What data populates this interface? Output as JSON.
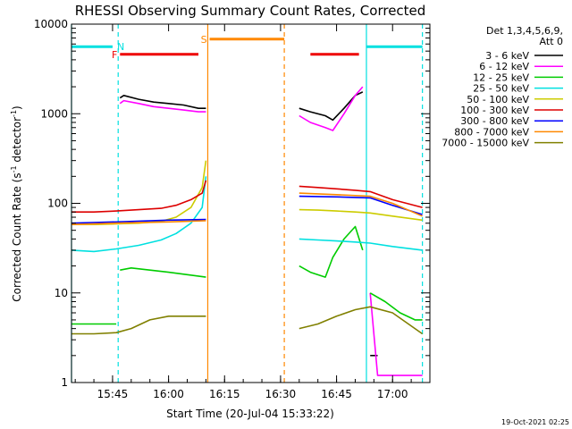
{
  "chart_data": {
    "type": "line",
    "title": "RHESSI Observing Summary Count Rates, Corrected",
    "xlabel": "Start Time (20-Jul-04 15:33:22)",
    "ylabel_main": "Corrected Count Rate (s",
    "ylabel_sup1": "-1",
    "ylabel_mid": " detector",
    "ylabel_sup2": "-1",
    "ylabel_end": ")",
    "yscale": "log",
    "xlim": [
      "15:34",
      "17:10"
    ],
    "ylim": [
      1,
      10000
    ],
    "x_ticks": [
      "15:45",
      "16:00",
      "16:15",
      "16:30",
      "16:45",
      "17:00"
    ],
    "y_ticks": [
      "1",
      "10",
      "100",
      "1000",
      "10000"
    ],
    "legend_header_1": "Det 1,3,4,5,6,9,",
    "legend_header_2": "Att 0",
    "legend_position": "right, outside plot",
    "timestamp": "19-Oct-2021 02:25",
    "series": [
      {
        "name": "3 - 6 keV",
        "color": "#000000",
        "segments": [
          {
            "x": [
              "15:47",
              "15:48",
              "15:52",
              "15:56",
              "16:00",
              "16:04",
              "16:08",
              "16:10"
            ],
            "y": [
              1500,
              1600,
              1450,
              1350,
              1300,
              1250,
              1150,
              1150
            ]
          },
          {
            "x": [
              "16:35",
              "16:38",
              "16:42",
              "16:44",
              "16:47",
              "16:50",
              "16:52"
            ],
            "y": [
              1150,
              1050,
              950,
              850,
              1150,
              1600,
              1750
            ]
          },
          {
            "x": [
              "16:54",
              "16:56"
            ],
            "y": [
              2,
              2
            ]
          }
        ]
      },
      {
        "name": "6 - 12 keV",
        "color": "#ff00ff",
        "segments": [
          {
            "x": [
              "15:47",
              "15:48",
              "15:52",
              "15:56",
              "16:00",
              "16:04",
              "16:08",
              "16:10"
            ],
            "y": [
              1300,
              1400,
              1300,
              1200,
              1150,
              1100,
              1050,
              1050
            ]
          },
          {
            "x": [
              "16:35",
              "16:38",
              "16:42",
              "16:44",
              "16:47",
              "16:50",
              "16:52"
            ],
            "y": [
              950,
              800,
              700,
              650,
              1000,
              1600,
              2000
            ]
          },
          {
            "x": [
              "16:54",
              "16:56",
              "17:08"
            ],
            "y": [
              10,
              1.2,
              1.2
            ]
          }
        ]
      },
      {
        "name": "12 - 25 keV",
        "color": "#00cc00",
        "segments": [
          {
            "x": [
              "15:34",
              "15:40",
              "15:44",
              "15:46"
            ],
            "y": [
              4.5,
              4.5,
              4.5,
              4.5
            ]
          },
          {
            "x": [
              "15:47",
              "15:50",
              "15:55",
              "16:00",
              "16:05",
              "16:10"
            ],
            "y": [
              18,
              19,
              18,
              17,
              16,
              15
            ]
          },
          {
            "x": [
              "16:35",
              "16:38",
              "16:42",
              "16:44",
              "16:47",
              "16:50",
              "16:52"
            ],
            "y": [
              20,
              17,
              15,
              25,
              40,
              55,
              30
            ]
          },
          {
            "x": [
              "16:54",
              "16:58",
              "17:02",
              "17:06",
              "17:08"
            ],
            "y": [
              10,
              8,
              6,
              5,
              5
            ]
          }
        ]
      },
      {
        "name": "25 - 50 keV",
        "color": "#00e0e0",
        "segments": [
          {
            "x": [
              "15:34",
              "15:40",
              "15:46",
              "15:52",
              "15:58",
              "16:02",
              "16:06",
              "16:09",
              "16:10"
            ],
            "y": [
              30,
              29,
              31,
              34,
              39,
              46,
              60,
              90,
              200
            ]
          },
          {
            "x": [
              "16:35",
              "16:40",
              "16:45",
              "16:50",
              "16:54",
              "17:00",
              "17:08"
            ],
            "y": [
              40,
              39,
              38,
              37,
              36,
              33,
              30
            ]
          }
        ]
      },
      {
        "name": "50 - 100 keV",
        "color": "#cccc00",
        "segments": [
          {
            "x": [
              "15:34",
              "15:40",
              "15:46",
              "15:52",
              "15:58",
              "16:02",
              "16:06",
              "16:09",
              "16:10"
            ],
            "y": [
              58,
              58,
              59,
              60,
              63,
              70,
              90,
              150,
              300
            ]
          },
          {
            "x": [
              "16:35",
              "16:40",
              "16:45",
              "16:50",
              "16:54",
              "17:00",
              "17:08"
            ],
            "y": [
              85,
              84,
              82,
              80,
              78,
              72,
              65
            ]
          }
        ]
      },
      {
        "name": "100 - 300 keV",
        "color": "#dd0000",
        "segments": [
          {
            "x": [
              "15:34",
              "15:40",
              "15:46",
              "15:52",
              "15:58",
              "16:02",
              "16:06",
              "16:09",
              "16:10"
            ],
            "y": [
              80,
              80,
              82,
              85,
              88,
              95,
              110,
              130,
              180
            ]
          },
          {
            "x": [
              "16:35",
              "16:40",
              "16:45",
              "16:50",
              "16:54",
              "17:00",
              "17:08"
            ],
            "y": [
              155,
              150,
              145,
              140,
              135,
              110,
              90
            ]
          }
        ]
      },
      {
        "name": "300 - 800 keV",
        "color": "#0000ff",
        "segments": [
          {
            "x": [
              "15:34",
              "15:46",
              "16:00",
              "16:10"
            ],
            "y": [
              60,
              62,
              65,
              66
            ]
          },
          {
            "x": [
              "16:35",
              "16:45",
              "16:54",
              "17:00",
              "17:08"
            ],
            "y": [
              120,
              118,
              115,
              95,
              75
            ]
          }
        ]
      },
      {
        "name": "800 - 7000 keV",
        "color": "#ff8800",
        "segments": [
          {
            "x": [
              "15:34",
              "15:46",
              "16:00",
              "16:10"
            ],
            "y": [
              58,
              60,
              62,
              64
            ]
          },
          {
            "x": [
              "16:35",
              "16:45",
              "16:54",
              "17:00",
              "17:08"
            ],
            "y": [
              130,
              125,
              120,
              100,
              72
            ]
          }
        ]
      },
      {
        "name": "7000 - 15000 keV",
        "color": "#808000",
        "segments": [
          {
            "x": [
              "15:34",
              "15:40",
              "15:46",
              "15:50",
              "15:55",
              "16:00",
              "16:05",
              "16:10"
            ],
            "y": [
              3.5,
              3.5,
              3.6,
              4,
              5,
              5.5,
              5.5,
              5.5
            ]
          },
          {
            "x": [
              "16:35",
              "16:40",
              "16:45",
              "16:50",
              "16:54",
              "17:00",
              "17:08"
            ],
            "y": [
              4,
              4.5,
              5.5,
              6.5,
              7,
              6,
              3.5
            ]
          }
        ]
      }
    ],
    "flags": [
      {
        "label": "N",
        "color": "#00e0e0",
        "segments": [
          [
            "15:34",
            "15:45"
          ],
          [
            "16:53",
            "17:08"
          ]
        ],
        "level": 5600
      },
      {
        "label": "F",
        "color": "#ee0000",
        "segments": [
          [
            "15:47",
            "16:08"
          ],
          [
            "16:38",
            "16:51"
          ]
        ],
        "level": 4600
      },
      {
        "label": "S",
        "color": "#ff8800",
        "segments": [
          [
            "16:11",
            "16:31"
          ]
        ],
        "level": 6800
      }
    ],
    "vlines": [
      {
        "x": "15:34",
        "color": "#00e0e0",
        "style": "solid"
      },
      {
        "x": "15:46.5",
        "color": "#00e0e0",
        "style": "dashed"
      },
      {
        "x": "16:10.5",
        "color": "#ff8800",
        "style": "solid"
      },
      {
        "x": "16:31",
        "color": "#ff8800",
        "style": "dashed"
      },
      {
        "x": "16:53",
        "color": "#00e0e0",
        "style": "solid"
      },
      {
        "x": "17:08",
        "color": "#00e0e0",
        "style": "dashed"
      }
    ]
  }
}
